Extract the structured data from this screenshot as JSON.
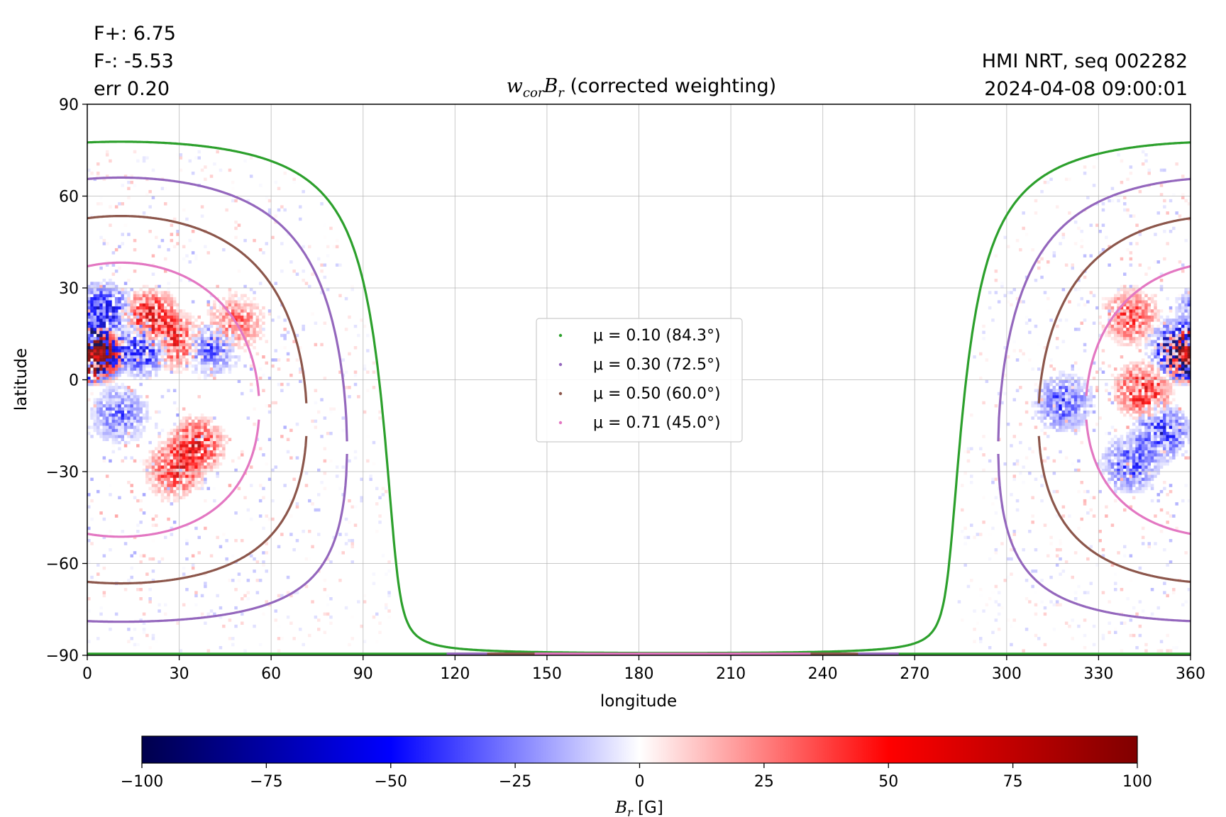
{
  "annotations": {
    "flux_pos": "F+: 6.75",
    "flux_neg": "F-: -5.53",
    "error": "err 0.20",
    "source": "HMI NRT, seq 002282",
    "timestamp": "2024-04-08 09:00:01"
  },
  "chart_data": {
    "type": "heatmap",
    "title": {
      "symbol_w": "w",
      "subscript": "cor",
      "symbol_b": "B",
      "subscript_b": "r",
      "suffix": " (corrected weighting)"
    },
    "xlabel": "longitude",
    "ylabel": "latitude",
    "xlim": [
      0,
      360
    ],
    "ylim": [
      -90,
      90
    ],
    "x_ticks": [
      0,
      30,
      60,
      90,
      120,
      150,
      180,
      210,
      240,
      270,
      300,
      330,
      360
    ],
    "x_tick_labels": [
      "0",
      "30",
      "60",
      "90",
      "120",
      "150",
      "180",
      "210",
      "240",
      "270",
      "300",
      "330",
      "360"
    ],
    "y_ticks": [
      90,
      60,
      30,
      0,
      -30,
      -60,
      -90
    ],
    "y_tick_labels": [
      "90",
      "60",
      "30",
      "0",
      "−30",
      "−60",
      "−90"
    ],
    "grid": true,
    "contours": [
      {
        "label": "μ = 0.10 (84.3°)",
        "mu": 0.1,
        "angle_deg": 84.3,
        "color": "#2ca02c"
      },
      {
        "label": "μ = 0.30 (72.5°)",
        "mu": 0.3,
        "angle_deg": 72.5,
        "color": "#9467bd"
      },
      {
        "label": "μ = 0.50 (60.0°)",
        "mu": 0.5,
        "angle_deg": 60.0,
        "color": "#8c564b"
      },
      {
        "label": "μ = 0.71 (45.0°)",
        "mu": 0.71,
        "angle_deg": 45.0,
        "color": "#e377c2"
      }
    ],
    "disk_center": {
      "lon": 11,
      "lat": -6.5
    },
    "legend_position": "center",
    "colorbar": {
      "label_symbol": "B",
      "label_sub": "r",
      "label_unit": " [G]",
      "min": -100,
      "max": 100,
      "ticks": [
        -100,
        -75,
        -50,
        -25,
        0,
        25,
        50,
        75,
        100
      ],
      "tick_labels": [
        "−100",
        "−75",
        "−50",
        "−25",
        "0",
        "25",
        "50",
        "75",
        "100"
      ],
      "colormap": "seismic",
      "colors": [
        "#00004c",
        "#0000ff",
        "#ffffff",
        "#ff0000",
        "#800000"
      ]
    },
    "active_regions": [
      {
        "lon": 5,
        "lat": 22,
        "polarity": "negative",
        "strength": 0.8
      },
      {
        "lon": 3,
        "lat": 8,
        "polarity": "strong",
        "strength": 1.0
      },
      {
        "lon": 20,
        "lat": 20,
        "polarity": "positive",
        "strength": 0.9
      },
      {
        "lon": 28,
        "lat": 12,
        "polarity": "positive",
        "strength": 0.7
      },
      {
        "lon": 18,
        "lat": 10,
        "polarity": "negative",
        "strength": 0.8
      },
      {
        "lon": 40,
        "lat": 10,
        "polarity": "negative",
        "strength": 0.5
      },
      {
        "lon": 48,
        "lat": 18,
        "polarity": "positive",
        "strength": 0.5
      },
      {
        "lon": 35,
        "lat": -22,
        "polarity": "positive",
        "strength": 0.8
      },
      {
        "lon": 28,
        "lat": -30,
        "polarity": "positive",
        "strength": 0.7
      },
      {
        "lon": 10,
        "lat": -12,
        "polarity": "negative",
        "strength": 0.5
      },
      {
        "lon": 355,
        "lat": 10,
        "polarity": "negative",
        "strength": 0.9
      },
      {
        "lon": 358,
        "lat": 8,
        "polarity": "strong",
        "strength": 1.0
      },
      {
        "lon": 340,
        "lat": 20,
        "polarity": "positive",
        "strength": 0.6
      },
      {
        "lon": 344,
        "lat": -4,
        "polarity": "positive",
        "strength": 0.8
      },
      {
        "lon": 350,
        "lat": -18,
        "polarity": "negative",
        "strength": 0.7
      },
      {
        "lon": 340,
        "lat": -28,
        "polarity": "negative",
        "strength": 0.6
      },
      {
        "lon": 318,
        "lat": -8,
        "polarity": "negative",
        "strength": 0.6
      }
    ]
  }
}
